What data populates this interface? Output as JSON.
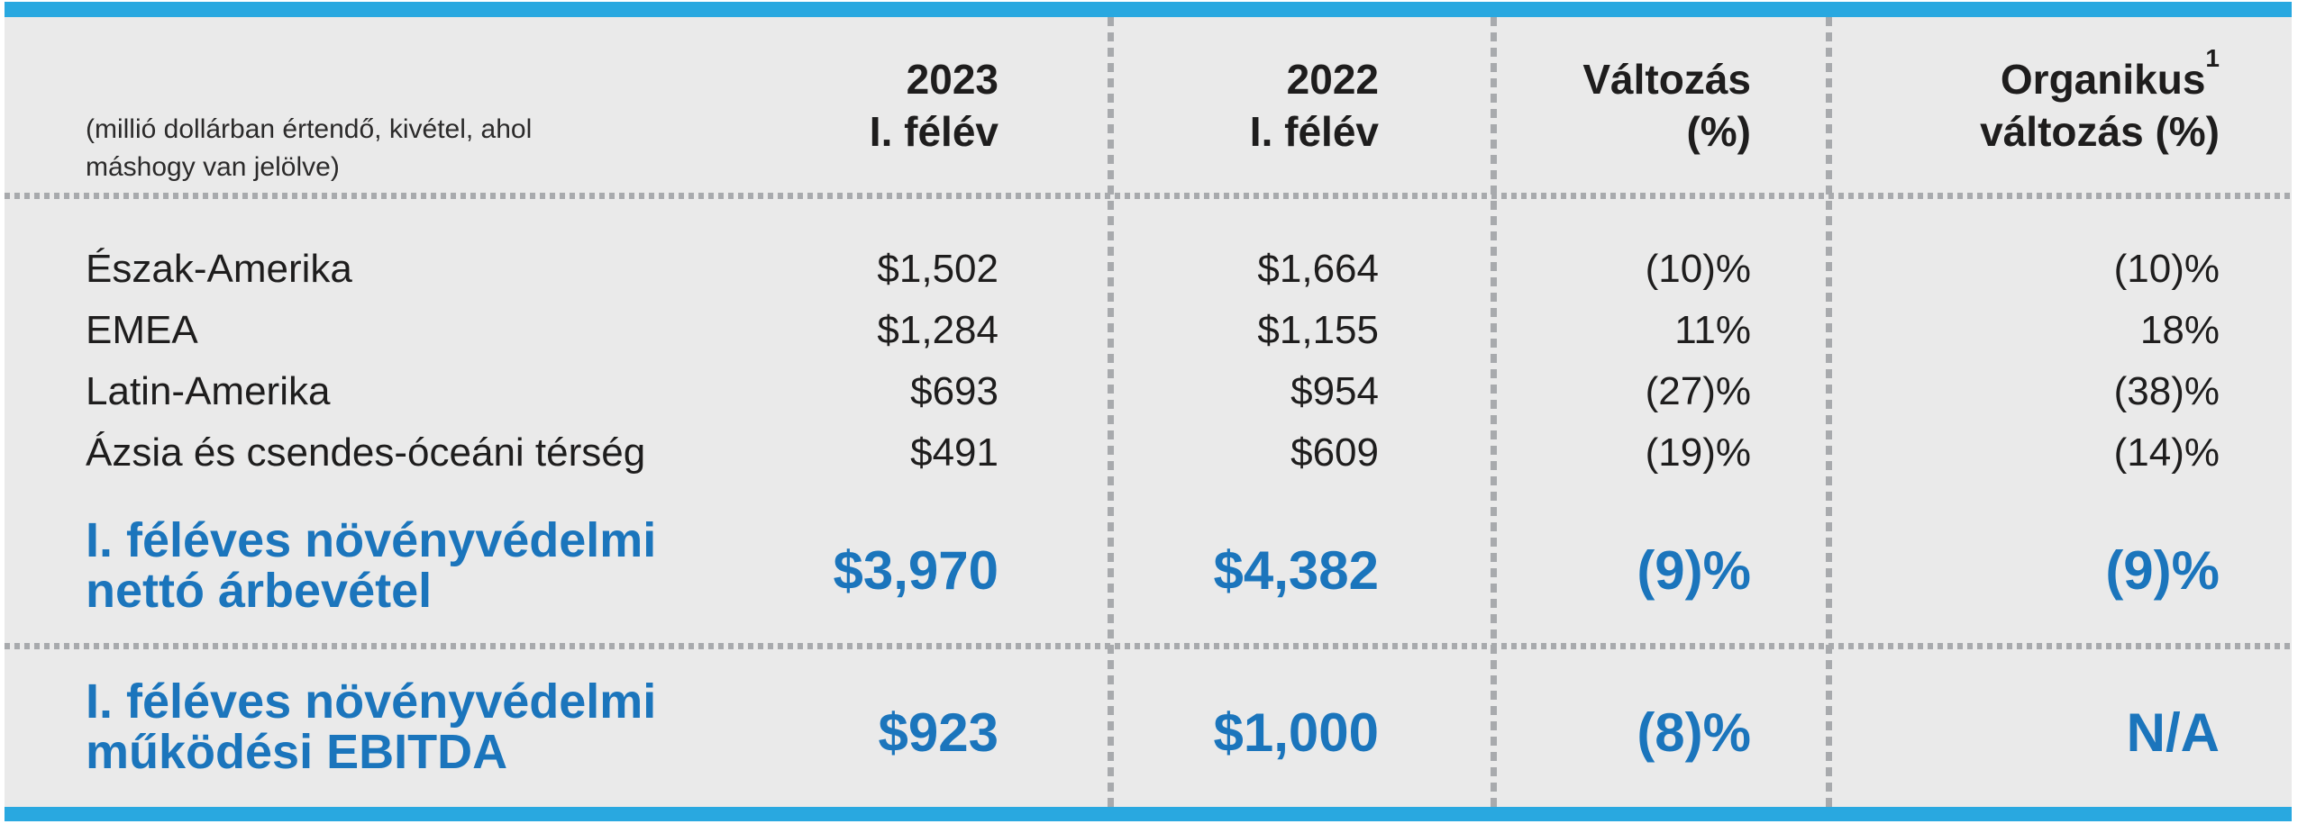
{
  "colors": {
    "accent_bar": "#29A8E0",
    "accent_text": "#1B75BC",
    "sheet_background": "#EAEAEA",
    "dotted_line": "#A8AAAD",
    "body_text": "#1E1D1D"
  },
  "table": {
    "note_lines": [
      "(millió dollárban értendő, kivétel, ahol",
      "máshogy van jelölve)"
    ],
    "columns": [
      {
        "line1": "2023",
        "line2": "I. félév"
      },
      {
        "line1": "2022",
        "line2": "I. félév"
      },
      {
        "line1": "Változás",
        "line2": "(%)"
      },
      {
        "line1": "Organikus",
        "sup": "1",
        "line2": "változás (%)"
      }
    ],
    "rows": [
      {
        "label": "Észak-Amerika",
        "values": [
          "$1,502",
          "$1,664",
          "(10)%",
          "(10)%"
        ]
      },
      {
        "label": "EMEA",
        "values": [
          "$1,284",
          "$1,155",
          "11%",
          "18%"
        ]
      },
      {
        "label": "Latin-Amerika",
        "values": [
          "$693",
          "$954",
          "(27)%",
          "(38)%"
        ]
      },
      {
        "label": "Ázsia és csendes-óceáni térség",
        "values": [
          "$491",
          "$609",
          "(19)%",
          "(14)%"
        ]
      }
    ],
    "totals": [
      {
        "label_lines": [
          "I. féléves növényvédelmi",
          "nettó árbevétel"
        ],
        "values": [
          "$3,970",
          "$4,382",
          "(9)%",
          "(9)%"
        ]
      },
      {
        "label_lines": [
          "I. féléves növényvédelmi",
          "működési EBITDA"
        ],
        "values": [
          "$923",
          "$1,000",
          "(8)%",
          "N/A"
        ]
      }
    ]
  }
}
